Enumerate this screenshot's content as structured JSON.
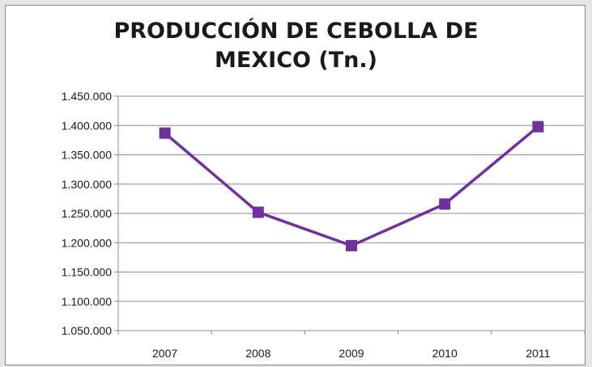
{
  "chart_data": {
    "type": "line",
    "title_lines": [
      "PRODUCCIÓN DE CEBOLLA DE",
      "MEXICO (Tn.)"
    ],
    "categories": [
      "2007",
      "2008",
      "2009",
      "2010",
      "2011"
    ],
    "series": [
      {
        "values": [
          1387000,
          1252000,
          1195000,
          1266000,
          1398000
        ],
        "color": "#7030a0",
        "marker": "square"
      }
    ],
    "ylim": [
      1050000,
      1450000
    ],
    "yticks": [
      1050000,
      1100000,
      1150000,
      1200000,
      1250000,
      1300000,
      1350000,
      1400000,
      1450000
    ],
    "ytick_labels": [
      "1.050.000",
      "1.100.000",
      "1.150.000",
      "1.200.000",
      "1.250.000",
      "1.300.000",
      "1.350.000",
      "1.400.000",
      "1.450.000"
    ],
    "grid": true,
    "legend": "none"
  }
}
